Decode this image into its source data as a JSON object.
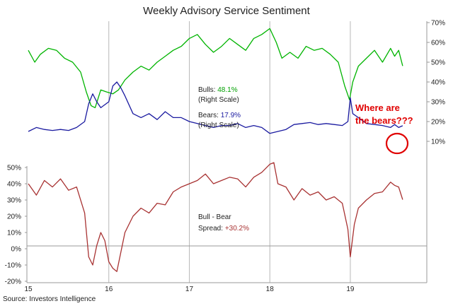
{
  "chart_data": {
    "type": "line",
    "title": "Weekly Advisory Service Sentiment",
    "source": "Source: Investors Intelligence",
    "x_ticks": [
      "15",
      "16",
      "17",
      "18",
      "19"
    ],
    "x_range": [
      2015.0,
      2019.95
    ],
    "right_axis": {
      "ticks": [
        "70%",
        "60%",
        "50%",
        "40%",
        "30%",
        "20%",
        "10%"
      ],
      "range": [
        0,
        70
      ]
    },
    "left_axis": {
      "ticks": [
        "50%",
        "40%",
        "30%",
        "20%",
        "10%",
        "0%",
        "-10%",
        "-20%"
      ],
      "range": [
        -20,
        50
      ]
    },
    "grid": "vertical at year starts",
    "series": [
      {
        "name": "Bulls",
        "axis": "right",
        "color": "#00b400",
        "x": [
          2015.0,
          2015.08,
          2015.15,
          2015.25,
          2015.35,
          2015.45,
          2015.55,
          2015.65,
          2015.72,
          2015.78,
          2015.83,
          2015.9,
          2015.97,
          2016.05,
          2016.12,
          2016.2,
          2016.3,
          2016.4,
          2016.5,
          2016.6,
          2016.7,
          2016.8,
          2016.9,
          2017.0,
          2017.1,
          2017.2,
          2017.3,
          2017.4,
          2017.5,
          2017.6,
          2017.7,
          2017.8,
          2017.9,
          2018.0,
          2018.08,
          2018.15,
          2018.25,
          2018.35,
          2018.45,
          2018.55,
          2018.65,
          2018.75,
          2018.85,
          2018.93,
          2018.99,
          2019.03,
          2019.1,
          2019.2,
          2019.3,
          2019.4,
          2019.5,
          2019.55,
          2019.6,
          2019.65
        ],
        "values": [
          56,
          50,
          54,
          57,
          56,
          52,
          50,
          45,
          35,
          28,
          27,
          36,
          35,
          34,
          36,
          41,
          45,
          48,
          46,
          50,
          53,
          56,
          58,
          62,
          64,
          59,
          55,
          58,
          62,
          59,
          56,
          62,
          64,
          67,
          60,
          52,
          55,
          52,
          58,
          56,
          57,
          54,
          50,
          38,
          31,
          40,
          48,
          52,
          56,
          50,
          57,
          53,
          56,
          48.1
        ]
      },
      {
        "name": "Bears",
        "axis": "right",
        "color": "#1a1aa0",
        "x": [
          2015.0,
          2015.1,
          2015.2,
          2015.3,
          2015.4,
          2015.5,
          2015.6,
          2015.7,
          2015.75,
          2015.8,
          2015.85,
          2015.9,
          2016.0,
          2016.05,
          2016.1,
          2016.15,
          2016.2,
          2016.3,
          2016.4,
          2016.5,
          2016.6,
          2016.7,
          2016.8,
          2016.9,
          2017.0,
          2017.1,
          2017.2,
          2017.3,
          2017.4,
          2017.5,
          2017.6,
          2017.7,
          2017.8,
          2017.9,
          2018.0,
          2018.05,
          2018.1,
          2018.2,
          2018.3,
          2018.4,
          2018.5,
          2018.6,
          2018.7,
          2018.8,
          2018.9,
          2018.97,
          2019.0,
          2019.03,
          2019.1,
          2019.2,
          2019.3,
          2019.4,
          2019.5,
          2019.55,
          2019.6,
          2019.65
        ],
        "values": [
          15,
          17,
          16,
          15.5,
          16,
          15.5,
          17,
          20,
          29,
          34,
          30,
          27,
          30,
          38,
          40,
          37,
          33,
          24,
          22,
          24,
          21,
          25,
          22,
          22,
          20,
          19,
          18,
          17,
          18,
          18,
          19,
          17,
          18,
          17,
          14,
          14.5,
          15,
          16,
          18.5,
          19,
          19.5,
          18.5,
          19,
          18.5,
          18,
          20,
          32,
          24,
          22,
          19,
          18.5,
          18,
          17,
          18.5,
          17,
          17.9
        ]
      },
      {
        "name": "Bull - Bear Spread",
        "axis": "left",
        "color": "#a83232",
        "x": [
          2015.0,
          2015.1,
          2015.2,
          2015.3,
          2015.4,
          2015.5,
          2015.6,
          2015.7,
          2015.75,
          2015.8,
          2015.85,
          2015.9,
          2015.95,
          2016.0,
          2016.05,
          2016.1,
          2016.15,
          2016.2,
          2016.3,
          2016.4,
          2016.5,
          2016.6,
          2016.7,
          2016.8,
          2016.9,
          2017.0,
          2017.1,
          2017.2,
          2017.3,
          2017.4,
          2017.5,
          2017.6,
          2017.7,
          2017.8,
          2017.9,
          2018.0,
          2018.05,
          2018.1,
          2018.2,
          2018.3,
          2018.4,
          2018.5,
          2018.6,
          2018.7,
          2018.8,
          2018.9,
          2018.97,
          2019.0,
          2019.05,
          2019.1,
          2019.2,
          2019.3,
          2019.4,
          2019.5,
          2019.55,
          2019.6,
          2019.65
        ],
        "values": [
          40,
          33,
          42,
          38,
          43,
          36,
          38,
          22,
          -5,
          -10,
          2,
          10,
          5,
          -8,
          -12,
          -14,
          -2,
          10,
          20,
          25,
          22,
          28,
          27,
          35,
          38,
          40,
          42,
          46,
          40,
          42,
          44,
          43,
          38,
          44,
          47,
          52,
          53,
          40,
          38,
          30,
          37,
          33,
          35,
          30,
          32,
          28,
          12,
          -5,
          15,
          25,
          30,
          34,
          35,
          41,
          39,
          38,
          30.2
        ]
      }
    ],
    "annotations": {
      "bulls_label": "Bulls: ",
      "bulls_value": "48.1%",
      "bulls_scale": "(Right Scale)",
      "bears_label": "Bears: ",
      "bears_value": "17.9%",
      "bears_scale": "(Right Scale)",
      "spread_label_1": "Bull - Bear",
      "spread_label_2": "Spread: ",
      "spread_value": "+30.2%",
      "callout_1": "Where are",
      "callout_2": "the bears???"
    }
  }
}
